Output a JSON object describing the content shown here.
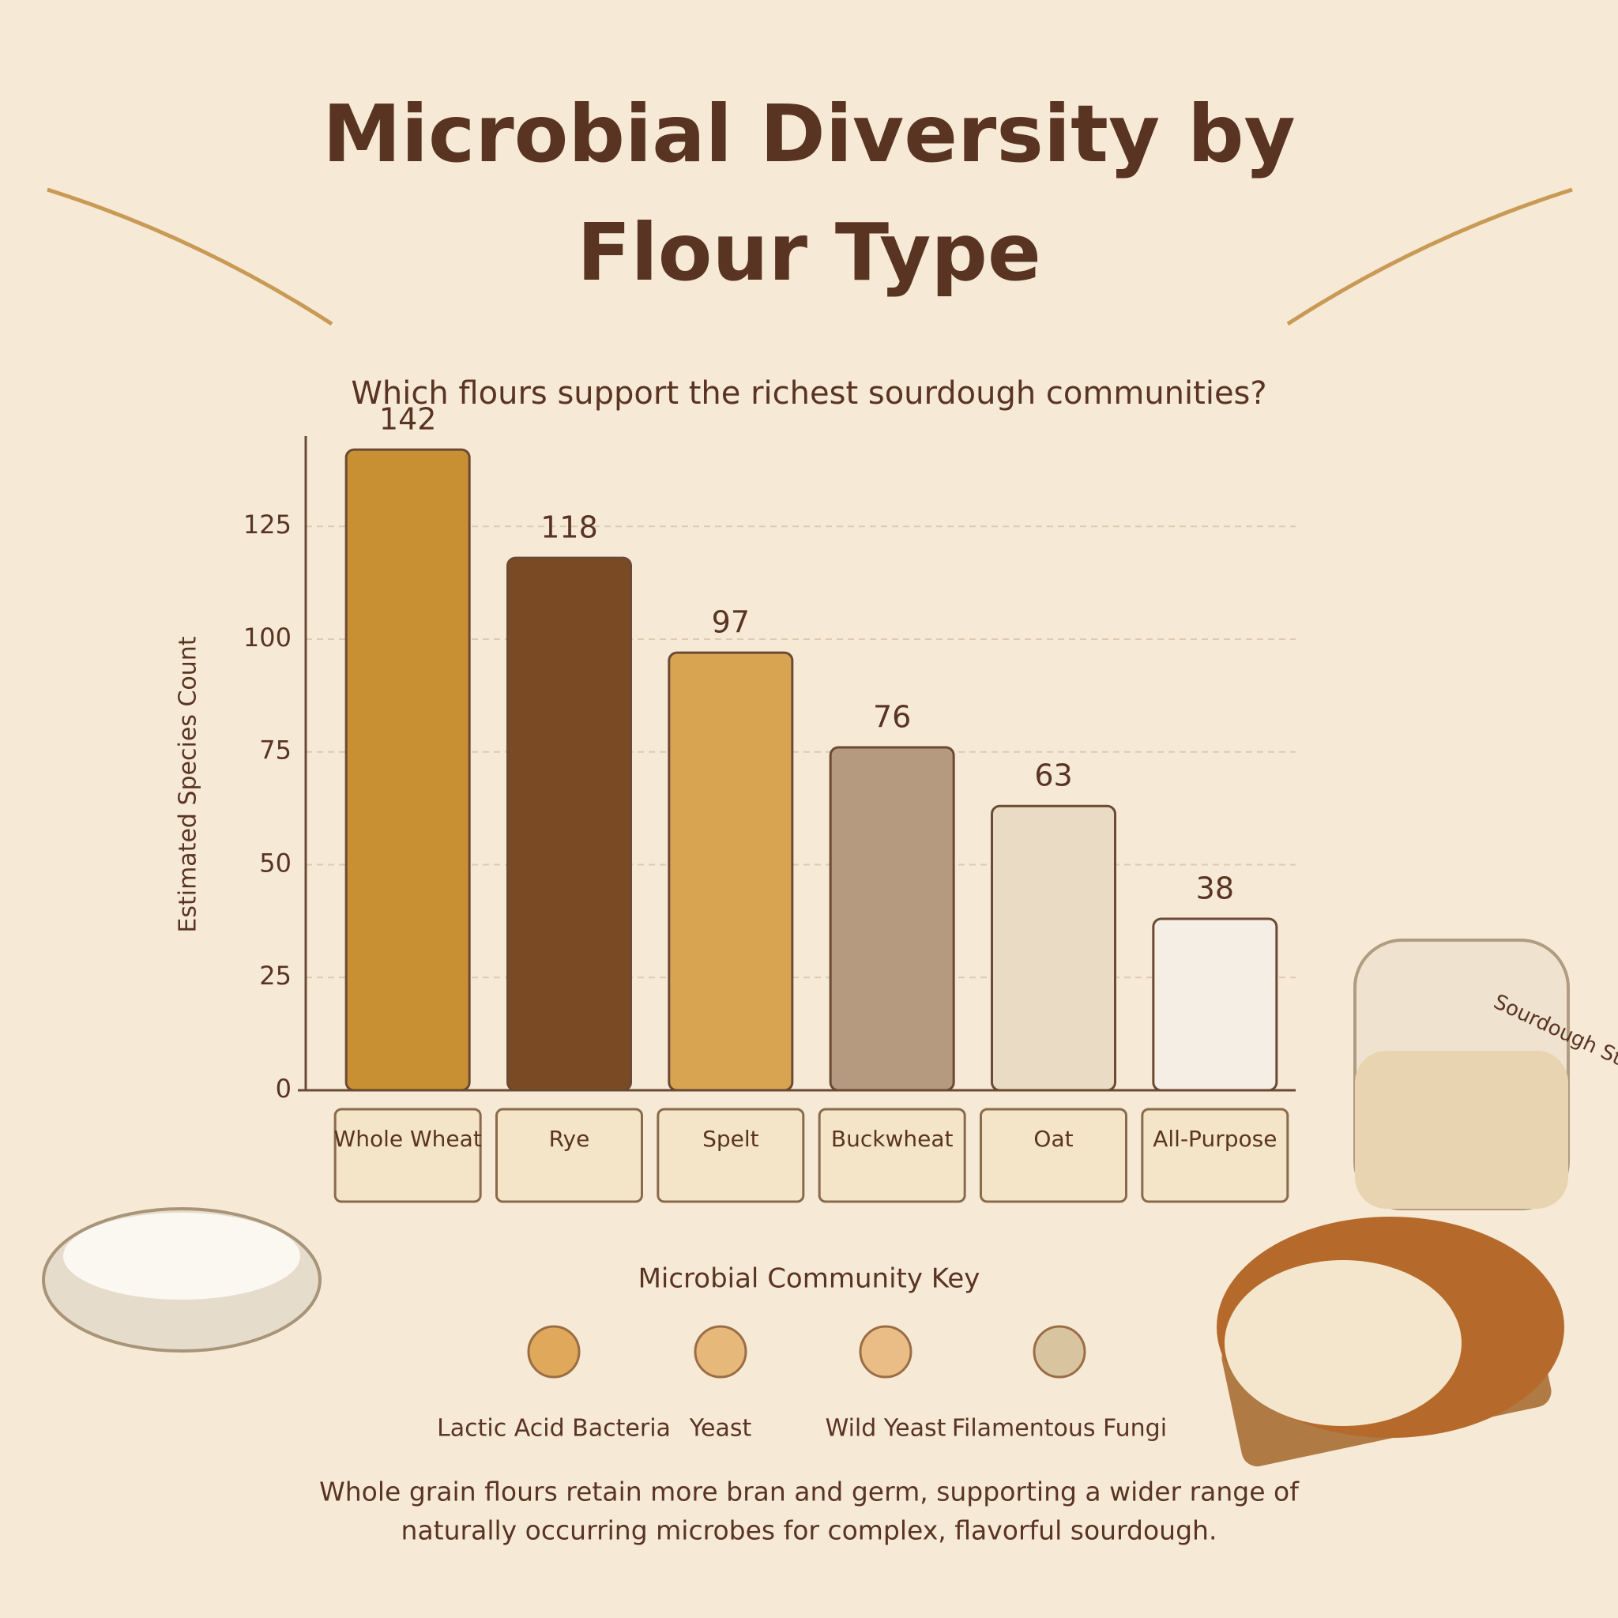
{
  "chart_data": {
    "type": "bar",
    "title": "Microbial Diversity by Flour Type",
    "subtitle": "Which flours support the richest sourdough communities?",
    "y_label": "Estimated Species Count",
    "categories": [
      "Whole Wheat",
      "Rye",
      "Spelt",
      "Buckwheat",
      "Oat",
      "All-Purpose"
    ],
    "values": [
      142,
      118,
      97,
      76,
      63,
      38
    ],
    "colors": [
      "#c98f33",
      "#7a4a24",
      "#d9a452",
      "#b59a80",
      "#eadcc4",
      "#f5eee4"
    ],
    "ylim": [
      0,
      145
    ],
    "yticks": [
      0,
      25,
      50,
      75,
      100,
      125
    ],
    "grid": true,
    "key_title": "Microbial Community Key",
    "key_items": [
      "Lactic Acid Bacteria",
      "Yeast",
      "Wild Yeast",
      "Filamentous Fungi"
    ],
    "jar_tag": "Sourdough Starter",
    "footnote": [
      "Whole grain flours retain more bran and germ, supporting a wider range of",
      "naturally occurring microbes for complex, flavorful sourdough."
    ]
  }
}
